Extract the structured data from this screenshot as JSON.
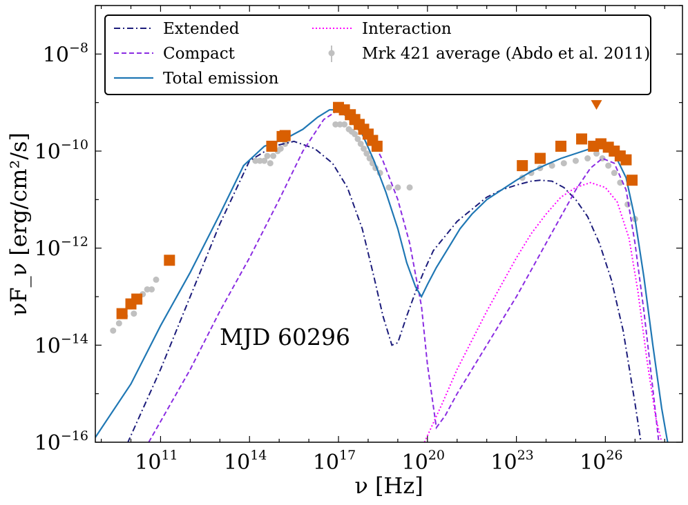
{
  "chart_data": {
    "type": "line",
    "title": "",
    "xlabel": "ν [Hz]",
    "ylabel": "νF_ν [erg/cm²/s]",
    "xscale": "log",
    "yscale": "log",
    "xlim_log10": [
      8.8,
      28.6
    ],
    "ylim_log10": [
      -16,
      -7
    ],
    "x_ticks": [
      {
        "base": "10",
        "exp": "11",
        "log10": 11
      },
      {
        "base": "10",
        "exp": "14",
        "log10": 14
      },
      {
        "base": "10",
        "exp": "17",
        "log10": 17
      },
      {
        "base": "10",
        "exp": "20",
        "log10": 20
      },
      {
        "base": "10",
        "exp": "23",
        "log10": 23
      },
      {
        "base": "10",
        "exp": "26",
        "log10": 26
      }
    ],
    "y_ticks": [
      {
        "base": "10",
        "exp": "−8",
        "log10": -8
      },
      {
        "base": "10",
        "exp": "−10",
        "log10": -10
      },
      {
        "base": "10",
        "exp": "−12",
        "log10": -12
      },
      {
        "base": "10",
        "exp": "−14",
        "log10": -14
      },
      {
        "base": "10",
        "exp": "−16",
        "log10": -16
      }
    ],
    "annotation": "MJD 60296",
    "legend_position": "top-left",
    "series": [
      {
        "name": "Extended",
        "color": "#1b1b7a",
        "style": "dashdot",
        "x_log10": [
          8.8,
          11,
          13,
          14,
          14.8,
          15.5,
          16.2,
          16.8,
          17.3,
          17.8,
          18.2,
          18.5,
          18.8,
          19.0,
          19.3,
          19.6,
          19.9,
          20.2,
          20.6,
          21.0,
          21.5,
          22.0,
          22.5,
          23.0,
          23.5,
          23.8,
          24.2,
          24.6,
          25.0,
          25.4,
          25.8,
          26.2,
          26.6,
          27.0,
          27.2
        ],
        "y_log10": [
          -17.5,
          -14.5,
          -11.5,
          -10.2,
          -9.9,
          -9.8,
          -9.95,
          -10.25,
          -10.75,
          -11.6,
          -12.6,
          -13.4,
          -14.0,
          -13.95,
          -13.4,
          -12.9,
          -12.45,
          -12.05,
          -11.75,
          -11.45,
          -11.2,
          -10.95,
          -10.8,
          -10.7,
          -10.62,
          -10.6,
          -10.62,
          -10.75,
          -11.0,
          -11.35,
          -11.9,
          -12.65,
          -13.7,
          -15.2,
          -16.0
        ]
      },
      {
        "name": "Compact",
        "color": "#8a2be2",
        "style": "dashed",
        "x_log10": [
          10.6,
          12,
          13,
          14,
          15,
          15.8,
          16.5,
          17.0,
          17.5,
          18.0,
          18.5,
          19.0,
          19.4,
          19.8,
          20.0,
          20.3,
          20.6,
          21.0,
          21.5,
          22,
          22.5,
          23,
          23.5,
          24,
          24.5,
          25,
          25.5,
          25.9,
          26.3,
          26.7,
          27.0,
          27.3,
          27.6,
          27.8
        ],
        "y_log10": [
          -16.0,
          -14.5,
          -13.3,
          -12.2,
          -11.0,
          -10.0,
          -9.35,
          -9.15,
          -9.25,
          -9.6,
          -10.2,
          -11.0,
          -11.9,
          -13.2,
          -14.4,
          -15.7,
          -15.45,
          -15.0,
          -14.5,
          -14.0,
          -13.5,
          -13.0,
          -12.45,
          -11.9,
          -11.35,
          -10.8,
          -10.35,
          -10.15,
          -10.25,
          -10.8,
          -11.9,
          -13.3,
          -14.9,
          -16.0
        ]
      },
      {
        "name": "Interaction",
        "color": "#ff00ff",
        "style": "dotted",
        "x_log10": [
          19.9,
          20.5,
          21.0,
          21.5,
          22.0,
          22.5,
          23.0,
          23.5,
          24.0,
          24.5,
          25.0,
          25.5,
          26.0,
          26.4,
          26.8,
          27.1,
          27.4,
          27.7,
          27.9
        ],
        "y_log10": [
          -16.0,
          -15.2,
          -14.5,
          -13.9,
          -13.3,
          -12.75,
          -12.2,
          -11.7,
          -11.3,
          -10.95,
          -10.75,
          -10.65,
          -10.75,
          -11.05,
          -11.8,
          -12.9,
          -14.3,
          -15.5,
          -16.0
        ]
      },
      {
        "name": "Total emission",
        "color": "#1f77b4",
        "style": "solid",
        "x_log10": [
          8.8,
          10,
          11,
          12,
          13,
          13.8,
          14.5,
          15.2,
          15.8,
          16.3,
          16.7,
          17.0,
          17.3,
          17.8,
          18.2,
          18.6,
          19.0,
          19.3,
          19.6,
          19.8,
          20.0,
          20.3,
          20.7,
          21.1,
          21.5,
          22,
          22.5,
          23,
          23.5,
          24,
          24.5,
          25,
          25.5,
          25.9,
          26.3,
          26.7,
          27.0,
          27.3,
          27.6,
          27.9,
          28.1
        ],
        "y_log10": [
          -15.9,
          -14.8,
          -13.6,
          -12.5,
          -11.3,
          -10.3,
          -9.9,
          -9.75,
          -9.55,
          -9.3,
          -9.15,
          -9.15,
          -9.3,
          -9.65,
          -10.2,
          -10.85,
          -11.6,
          -12.3,
          -12.8,
          -13.0,
          -12.75,
          -12.4,
          -12.0,
          -11.6,
          -11.3,
          -11.0,
          -10.8,
          -10.6,
          -10.42,
          -10.28,
          -10.15,
          -10.05,
          -9.95,
          -9.92,
          -10.05,
          -10.55,
          -11.4,
          -12.6,
          -14.0,
          -15.3,
          -16.0
        ]
      }
    ],
    "observed": {
      "name": "Mrk 421 average (Abdo et al. 2011)",
      "color": "#c0c0c0",
      "points": [
        {
          "x": 9.4,
          "y": -13.7
        },
        {
          "x": 9.6,
          "y": -13.55
        },
        {
          "x": 9.8,
          "y": -13.4
        },
        {
          "x": 10.0,
          "y": -13.2
        },
        {
          "x": 10.1,
          "y": -13.35
        },
        {
          "x": 10.25,
          "y": -13.05
        },
        {
          "x": 10.4,
          "y": -12.95
        },
        {
          "x": 10.55,
          "y": -12.85
        },
        {
          "x": 10.7,
          "y": -12.85
        },
        {
          "x": 10.85,
          "y": -12.65
        },
        {
          "x": 14.2,
          "y": -10.2
        },
        {
          "x": 14.35,
          "y": -10.2
        },
        {
          "x": 14.5,
          "y": -10.2
        },
        {
          "x": 14.6,
          "y": -10.1
        },
        {
          "x": 14.7,
          "y": -10.25
        },
        {
          "x": 14.8,
          "y": -10.1
        },
        {
          "x": 14.95,
          "y": -10.0
        },
        {
          "x": 15.05,
          "y": -9.95
        },
        {
          "x": 15.2,
          "y": -9.85
        },
        {
          "x": 15.25,
          "y": -9.8
        },
        {
          "x": 16.9,
          "y": -9.45
        },
        {
          "x": 17.05,
          "y": -9.45
        },
        {
          "x": 17.2,
          "y": -9.45
        },
        {
          "x": 17.35,
          "y": -9.55
        },
        {
          "x": 17.45,
          "y": -9.6
        },
        {
          "x": 17.55,
          "y": -9.65
        },
        {
          "x": 17.65,
          "y": -9.75
        },
        {
          "x": 17.75,
          "y": -9.85
        },
        {
          "x": 17.85,
          "y": -9.95
        },
        {
          "x": 17.95,
          "y": -10.05
        },
        {
          "x": 18.05,
          "y": -10.15
        },
        {
          "x": 18.15,
          "y": -10.25
        },
        {
          "x": 18.25,
          "y": -10.35
        },
        {
          "x": 18.4,
          "y": -10.45
        },
        {
          "x": 18.7,
          "y": -10.75
        },
        {
          "x": 19.0,
          "y": -10.75
        },
        {
          "x": 19.4,
          "y": -10.75
        },
        {
          "x": 23.2,
          "y": -10.55
        },
        {
          "x": 23.5,
          "y": -10.45
        },
        {
          "x": 23.8,
          "y": -10.35
        },
        {
          "x": 24.2,
          "y": -10.3
        },
        {
          "x": 24.6,
          "y": -10.25
        },
        {
          "x": 25.0,
          "y": -10.2
        },
        {
          "x": 25.4,
          "y": -10.15
        },
        {
          "x": 25.7,
          "y": -10.05
        },
        {
          "x": 25.9,
          "y": -10.15
        },
        {
          "x": 26.1,
          "y": -10.3
        },
        {
          "x": 26.3,
          "y": -10.45
        },
        {
          "x": 26.5,
          "y": -10.65
        },
        {
          "x": 26.75,
          "y": -11.1
        },
        {
          "x": 27.0,
          "y": -11.4
        }
      ]
    },
    "mjd_points": {
      "color": "#d95f02",
      "points": [
        {
          "x": 9.7,
          "y": -13.35
        },
        {
          "x": 10.0,
          "y": -13.15
        },
        {
          "x": 10.2,
          "y": -13.05
        },
        {
          "x": 11.3,
          "y": -12.25
        },
        {
          "x": 14.75,
          "y": -9.9
        },
        {
          "x": 15.1,
          "y": -9.7
        },
        {
          "x": 15.2,
          "y": -9.68
        },
        {
          "x": 17.0,
          "y": -9.1
        },
        {
          "x": 17.2,
          "y": -9.15
        },
        {
          "x": 17.4,
          "y": -9.25
        },
        {
          "x": 17.55,
          "y": -9.35
        },
        {
          "x": 17.7,
          "y": -9.45
        },
        {
          "x": 17.85,
          "y": -9.55
        },
        {
          "x": 18.0,
          "y": -9.65
        },
        {
          "x": 18.15,
          "y": -9.78
        },
        {
          "x": 18.3,
          "y": -9.9
        },
        {
          "x": 23.2,
          "y": -10.3
        },
        {
          "x": 23.8,
          "y": -10.15
        },
        {
          "x": 24.5,
          "y": -9.9
        },
        {
          "x": 25.2,
          "y": -9.75
        },
        {
          "x": 25.6,
          "y": -9.9
        },
        {
          "x": 25.85,
          "y": -9.85
        },
        {
          "x": 26.1,
          "y": -9.92
        },
        {
          "x": 26.3,
          "y": -10.0
        },
        {
          "x": 26.5,
          "y": -10.1
        },
        {
          "x": 26.7,
          "y": -10.18
        },
        {
          "x": 26.9,
          "y": -10.6
        }
      ],
      "upper_limit": {
        "x": 25.7,
        "y": -9.05
      }
    }
  }
}
